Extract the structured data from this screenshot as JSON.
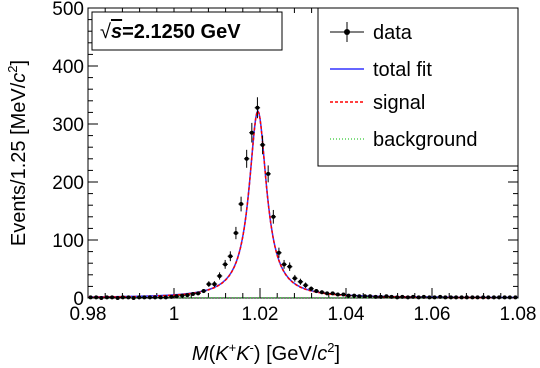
{
  "chart_data": {
    "type": "line",
    "x_label_var": "M",
    "x_label_kk": "K",
    "x_label_sup_plus": "+",
    "x_label_sup_minus": "-",
    "x_label_unit_main": " [GeV/",
    "x_label_unit_c": "c",
    "x_label_unit_sup": "2",
    "x_label_unit_close": "]",
    "y_label_main": "Events/1.25 [MeV/",
    "y_label_c": "c",
    "y_label_sup": "2",
    "y_label_close": "]",
    "xlim": [
      0.98,
      1.08
    ],
    "ylim": [
      0,
      500
    ],
    "x_ticks": [
      0.98,
      1.0,
      1.02,
      1.04,
      1.06,
      1.08
    ],
    "x_tick_labels": [
      "0.98",
      "1",
      "1.02",
      "1.04",
      "1.06",
      "1.08"
    ],
    "y_ticks": [
      0,
      100,
      200,
      300,
      400,
      500
    ],
    "y_tick_labels": [
      "0",
      "100",
      "200",
      "300",
      "400",
      "500"
    ],
    "energy_label_sqrt": "√",
    "energy_label_s": "s",
    "energy_label_value": "=2.1250 GeV",
    "legend_position": "top-right",
    "legend": [
      {
        "label": "data",
        "style": "marker"
      },
      {
        "label": "total fit",
        "style": "line",
        "color": "#3333ff"
      },
      {
        "label": "signal",
        "style": "dashed",
        "color": "#ff0000"
      },
      {
        "label": "background",
        "style": "dotted",
        "color": "#00bb00"
      }
    ],
    "data_points": {
      "x": [
        0.9806,
        0.9819,
        0.9831,
        0.9844,
        0.9856,
        0.9869,
        0.9881,
        0.9894,
        0.9906,
        0.9919,
        0.9931,
        0.9944,
        0.9956,
        0.9969,
        0.9981,
        0.9994,
        1.0006,
        1.0019,
        1.0031,
        1.0044,
        1.0056,
        1.0069,
        1.0081,
        1.0094,
        1.0106,
        1.0119,
        1.0131,
        1.0144,
        1.0156,
        1.0169,
        1.0181,
        1.0194,
        1.0206,
        1.0219,
        1.0231,
        1.0244,
        1.0256,
        1.0269,
        1.0281,
        1.0294,
        1.0306,
        1.0319,
        1.0331,
        1.0344,
        1.0356,
        1.0369,
        1.0381,
        1.0394,
        1.0406,
        1.0419,
        1.0431,
        1.0444,
        1.0456,
        1.0469,
        1.0481,
        1.0494,
        1.0506,
        1.0519,
        1.0531,
        1.0544,
        1.0556,
        1.0569,
        1.0581,
        1.0594,
        1.0606,
        1.0619,
        1.0631,
        1.0644,
        1.0656,
        1.0669,
        1.0681,
        1.0694,
        1.0706,
        1.0719,
        1.0731,
        1.0744,
        1.0756,
        1.0769,
        1.0781,
        1.0794
      ],
      "y": [
        1,
        1,
        0,
        1,
        1,
        0,
        1,
        1,
        0,
        1,
        1,
        1,
        1,
        1,
        1,
        2,
        3,
        4,
        5,
        7,
        8,
        12,
        24,
        24,
        38,
        58,
        72,
        112,
        162,
        240,
        285,
        328,
        264,
        214,
        140,
        78,
        58,
        54,
        34,
        28,
        22,
        16,
        12,
        10,
        8,
        8,
        6,
        6,
        4,
        4,
        3,
        3,
        3,
        2,
        2,
        3,
        2,
        1,
        2,
        1,
        2,
        1,
        2,
        1,
        1,
        2,
        1,
        1,
        1,
        1,
        1,
        1,
        1,
        1,
        1,
        1,
        1,
        1,
        1,
        1
      ],
      "err": [
        1,
        1,
        1,
        1,
        1,
        1,
        1,
        1,
        1,
        1,
        1,
        1,
        1,
        1,
        1,
        1.5,
        1.8,
        2,
        2.3,
        2.7,
        3,
        3.5,
        5,
        5,
        6.2,
        7.6,
        8.5,
        10.6,
        12.7,
        15.5,
        16.9,
        18.1,
        16.2,
        14.6,
        11.8,
        8.8,
        7.6,
        7.3,
        5.8,
        5.3,
        4.7,
        4,
        3.5,
        3.2,
        2.8,
        2.8,
        2.5,
        2.5,
        2,
        2,
        1.8,
        1.8,
        1.8,
        1.5,
        1.5,
        1.8,
        1.5,
        1,
        1.5,
        1,
        1.5,
        1,
        1.5,
        1,
        1,
        1.5,
        1,
        1,
        1,
        1,
        1,
        1,
        1,
        1,
        1,
        1,
        1,
        1,
        1,
        1
      ]
    },
    "fit_params": {
      "mean": 1.0195,
      "gamma": 0.0049,
      "amplitude": 322
    }
  }
}
